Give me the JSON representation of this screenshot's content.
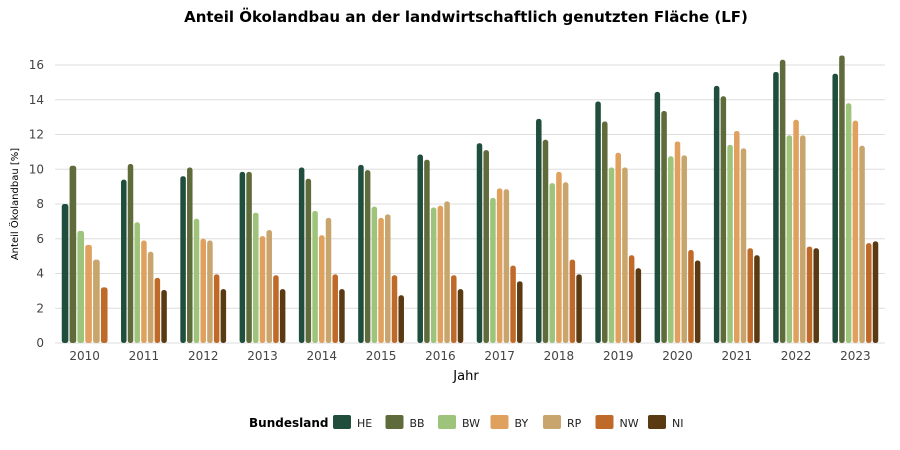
{
  "chart_data": {
    "type": "bar",
    "title": "Anteil Ökolandbau an der landwirtschaftlich genutzten Fläche (LF)",
    "xlabel": "Jahr",
    "ylabel": "Anteil Ökolandbau [%]",
    "ylim": [
      0,
      17.5
    ],
    "yticks": [
      0,
      2,
      4,
      6,
      8,
      10,
      12,
      14,
      16
    ],
    "grid": true,
    "legend_title": "Bundesland",
    "legend_position": "bottom",
    "categories": [
      "2010",
      "2011",
      "2012",
      "2013",
      "2014",
      "2015",
      "2016",
      "2017",
      "2018",
      "2019",
      "2020",
      "2021",
      "2022",
      "2023"
    ],
    "series": [
      {
        "name": "HE",
        "color": "#1f4e3d",
        "values": [
          8.0,
          9.4,
          9.6,
          9.85,
          10.1,
          10.25,
          10.85,
          11.5,
          12.9,
          13.9,
          14.45,
          14.8,
          15.6,
          15.5
        ]
      },
      {
        "name": "BB",
        "color": "#5f6b3a",
        "values": [
          10.2,
          10.3,
          10.1,
          9.85,
          9.45,
          9.95,
          10.55,
          11.1,
          11.7,
          12.75,
          13.35,
          14.2,
          16.3,
          16.55
        ]
      },
      {
        "name": "BW",
        "color": "#9dc47a",
        "values": [
          6.45,
          6.95,
          7.15,
          7.5,
          7.6,
          7.85,
          7.8,
          8.35,
          9.2,
          10.1,
          10.75,
          11.4,
          11.95,
          13.8
        ]
      },
      {
        "name": "BY",
        "color": "#e0a05e",
        "values": [
          5.65,
          5.9,
          6.0,
          6.15,
          6.2,
          7.2,
          7.9,
          8.9,
          9.85,
          10.95,
          11.6,
          12.2,
          12.85,
          12.8
        ]
      },
      {
        "name": "RP",
        "color": "#c9a56e",
        "values": [
          4.8,
          5.25,
          5.9,
          6.5,
          7.2,
          7.4,
          8.15,
          8.85,
          9.25,
          10.1,
          10.8,
          11.2,
          11.95,
          11.35
        ]
      },
      {
        "name": "NW",
        "color": "#c06a2a",
        "values": [
          3.2,
          3.75,
          3.95,
          3.9,
          3.95,
          3.9,
          3.9,
          4.45,
          4.8,
          5.05,
          5.35,
          5.45,
          5.55,
          5.75
        ]
      },
      {
        "name": "NI",
        "color": "#5a3a12",
        "values": [
          null,
          3.05,
          3.1,
          3.1,
          3.1,
          2.75,
          3.1,
          3.55,
          3.95,
          4.3,
          4.75,
          5.05,
          5.45,
          5.85
        ]
      }
    ]
  }
}
